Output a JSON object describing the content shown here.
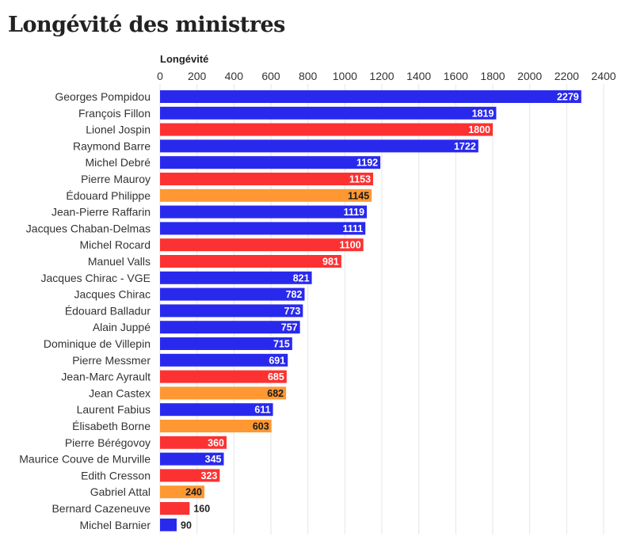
{
  "chart_data": {
    "type": "bar",
    "orientation": "horizontal",
    "title": "Longévité des ministres",
    "xlabel": "Longévité",
    "ylabel": "",
    "xlim": [
      0,
      2400
    ],
    "xticks": [
      0,
      200,
      400,
      600,
      800,
      1000,
      1200,
      1400,
      1600,
      1800,
      2000,
      2200,
      2400
    ],
    "grid": true,
    "legend": "none",
    "bars": [
      {
        "label": "Georges Pompidou",
        "value": 2279,
        "color": "#2929ee"
      },
      {
        "label": "François Fillon",
        "value": 1819,
        "color": "#2929ee"
      },
      {
        "label": "Lionel Jospin",
        "value": 1800,
        "color": "#fc3232"
      },
      {
        "label": "Raymond Barre",
        "value": 1722,
        "color": "#2929ee"
      },
      {
        "label": "Michel Debré",
        "value": 1192,
        "color": "#2929ee"
      },
      {
        "label": "Pierre Mauroy",
        "value": 1153,
        "color": "#fc3232"
      },
      {
        "label": "Édouard Philippe",
        "value": 1145,
        "color": "#ff9833"
      },
      {
        "label": "Jean-Pierre Raffarin",
        "value": 1119,
        "color": "#2929ee"
      },
      {
        "label": "Jacques Chaban-Delmas",
        "value": 1111,
        "color": "#2929ee"
      },
      {
        "label": "Michel Rocard",
        "value": 1100,
        "color": "#fc3232"
      },
      {
        "label": "Manuel Valls",
        "value": 981,
        "color": "#fc3232"
      },
      {
        "label": "Jacques Chirac - VGE",
        "value": 821,
        "color": "#2929ee"
      },
      {
        "label": "Jacques Chirac",
        "value": 782,
        "color": "#2929ee"
      },
      {
        "label": "Édouard Balladur",
        "value": 773,
        "color": "#2929ee"
      },
      {
        "label": "Alain Juppé",
        "value": 757,
        "color": "#2929ee"
      },
      {
        "label": "Dominique de Villepin",
        "value": 715,
        "color": "#2929ee"
      },
      {
        "label": "Pierre Messmer",
        "value": 691,
        "color": "#2929ee"
      },
      {
        "label": "Jean-Marc Ayrault",
        "value": 685,
        "color": "#fc3232"
      },
      {
        "label": "Jean Castex",
        "value": 682,
        "color": "#ff9833"
      },
      {
        "label": "Laurent Fabius",
        "value": 611,
        "color": "#2929ee"
      },
      {
        "label": "Élisabeth Borne",
        "value": 603,
        "color": "#ff9833"
      },
      {
        "label": "Pierre Bérégovoy",
        "value": 360,
        "color": "#fc3232"
      },
      {
        "label": "Maurice Couve de Murville",
        "value": 345,
        "color": "#2929ee"
      },
      {
        "label": "Edith Cresson",
        "value": 323,
        "color": "#fc3232"
      },
      {
        "label": "Gabriel Attal",
        "value": 240,
        "color": "#ff9833"
      },
      {
        "label": "Bernard Cazeneuve",
        "value": 160,
        "color": "#fc3232"
      },
      {
        "label": "Michel Barnier",
        "value": 90,
        "color": "#2929ee"
      }
    ]
  }
}
